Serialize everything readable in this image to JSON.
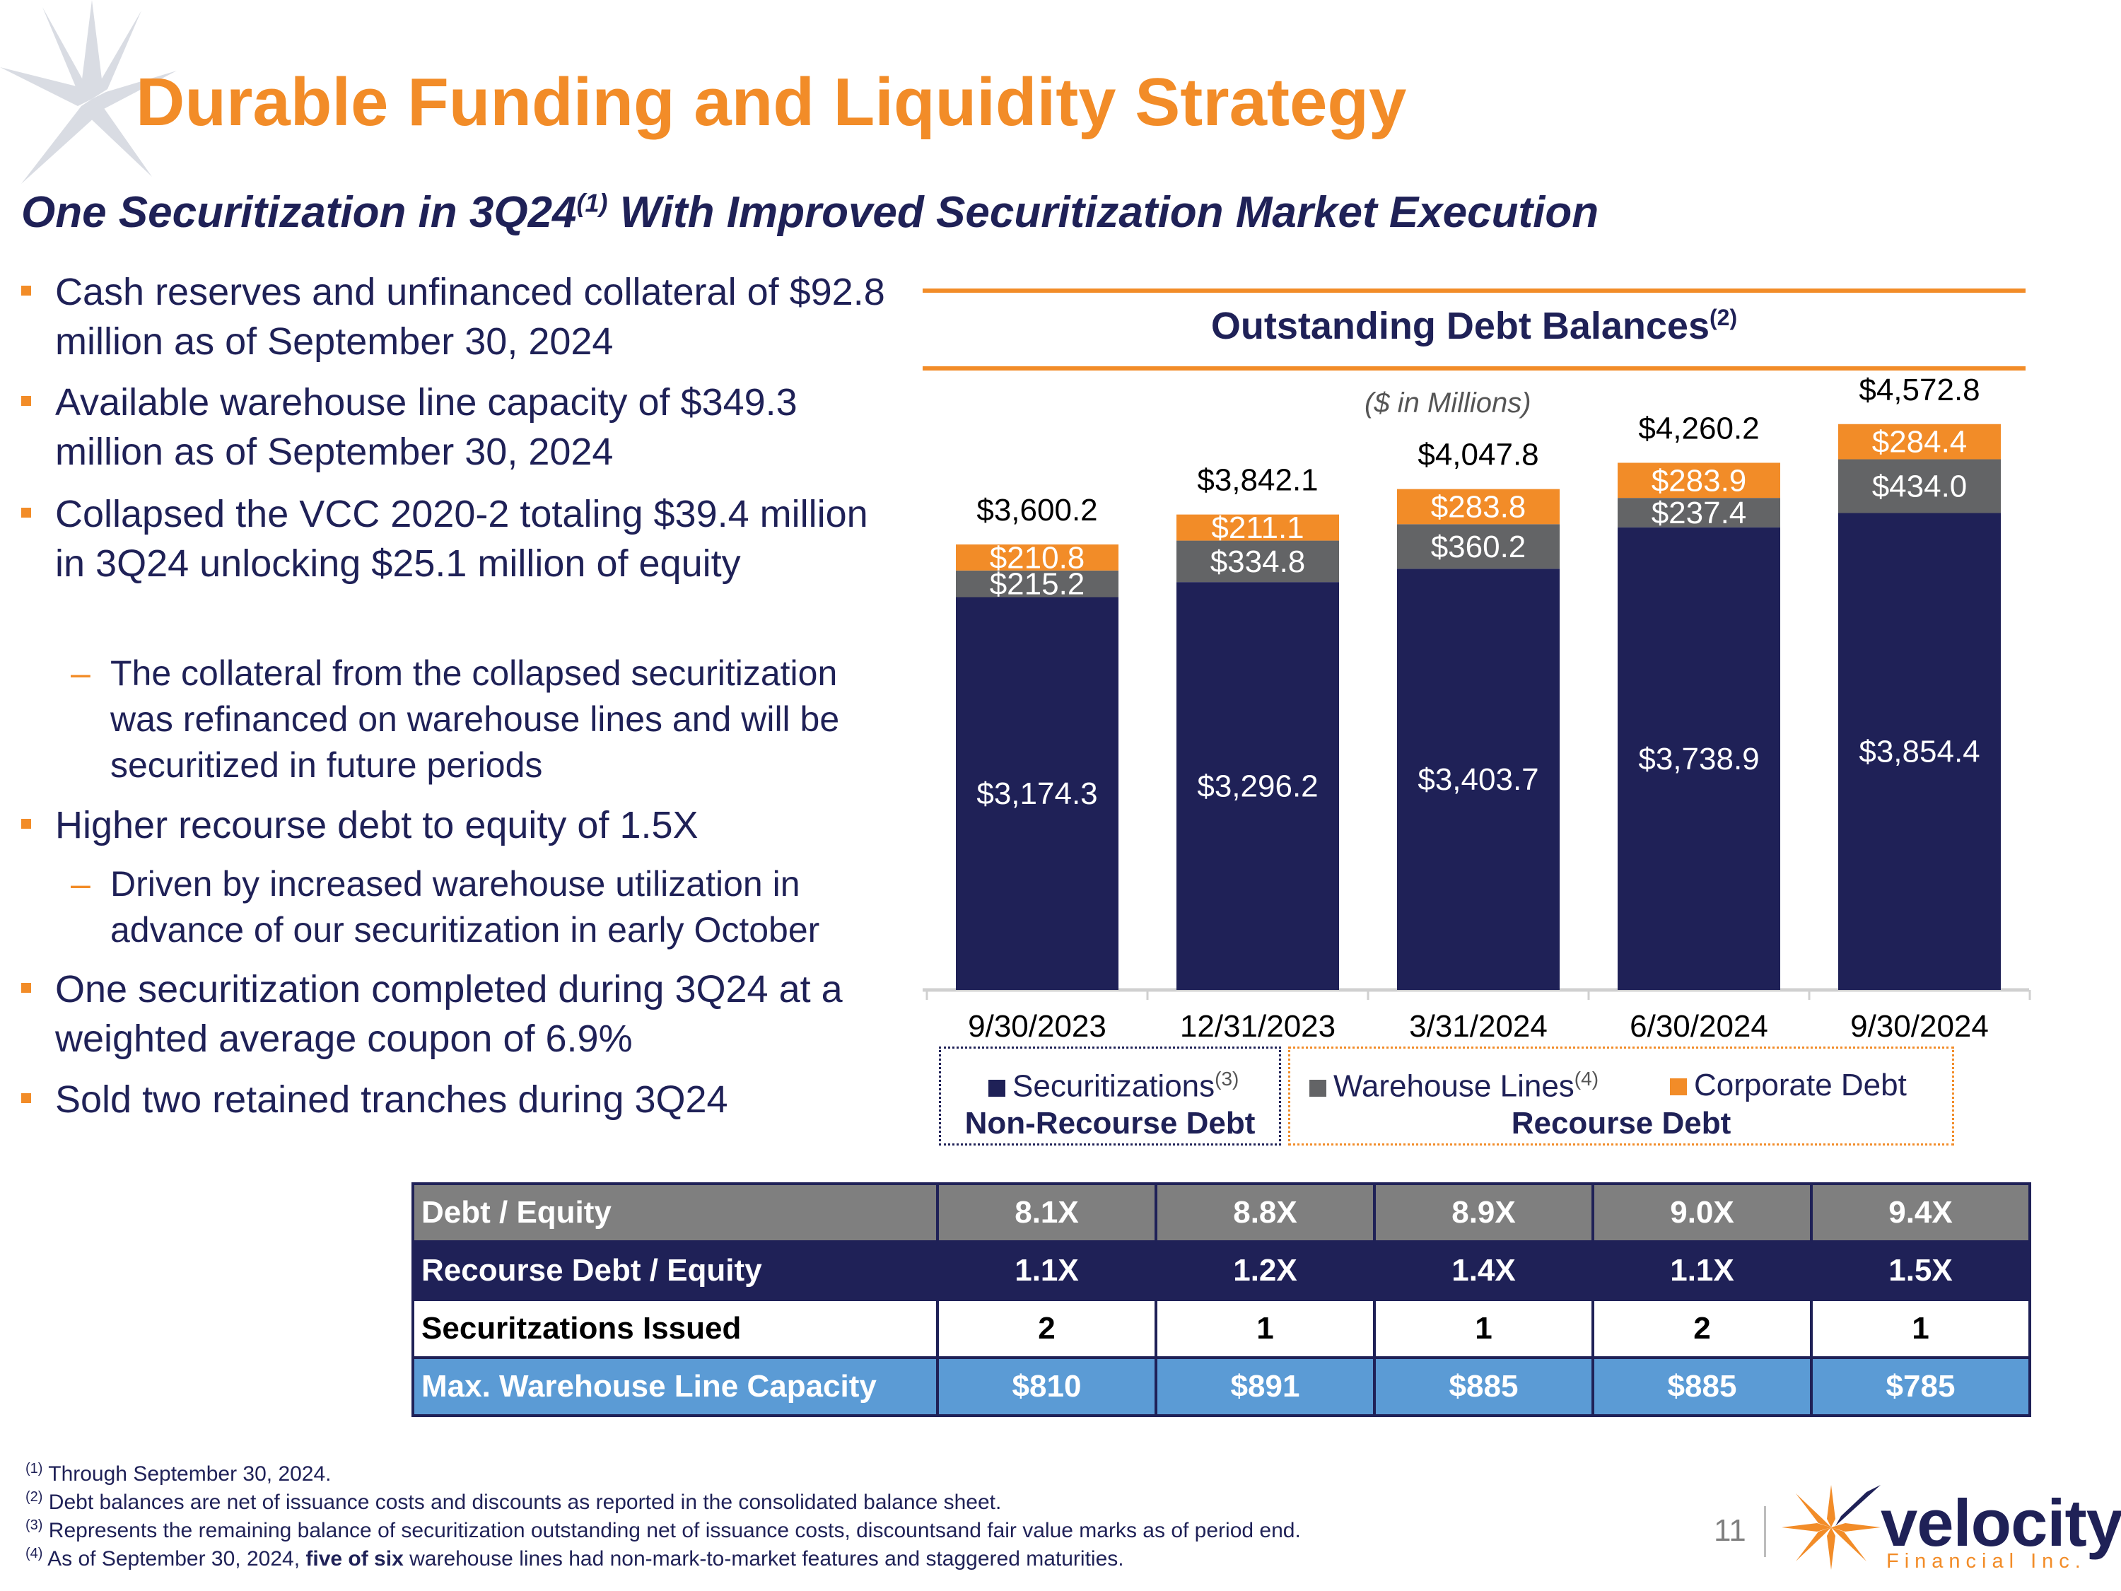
{
  "header": {
    "title": "Durable Funding and Liquidity Strategy",
    "subtitle_pre": "One Securitization in 3Q24",
    "subtitle_sup": "(1)",
    "subtitle_post": " With Improved Securitization Market Execution"
  },
  "bullets": [
    "Cash reserves and unfinanced collateral of $92.8 million as of September 30, 2024",
    "Available warehouse line capacity of $349.3 million as of September 30, 2024",
    "Collapsed the VCC 2020-2 totaling $39.4 million in 3Q24 unlocking $25.1 million of equity",
    "The collateral from the collapsed securitization was refinanced on warehouse lines and will be securitized in future periods",
    "Higher recourse debt to equity of 1.5X",
    "Driven by increased warehouse utilization in advance of our securitization in early October",
    "One securitization completed during 3Q24 at a weighted average coupon of 6.9%",
    "Sold two retained tranches during 3Q24"
  ],
  "colors": {
    "navy": "#1f2157",
    "gray": "#636466",
    "orange": "#f28c28",
    "blue": "#5b9bd5"
  },
  "chart_data": {
    "type": "bar",
    "stacked": true,
    "title": "Outstanding Debt Balances",
    "title_sup": "(2)",
    "units": "($ in Millions)",
    "categories": [
      "9/30/2023",
      "12/31/2023",
      "3/31/2024",
      "6/30/2024",
      "9/30/2024"
    ],
    "series": [
      {
        "name": "Securitizations",
        "sup": "(3)",
        "color": "#1f2157",
        "values": [
          3174.3,
          3296.2,
          3403.7,
          3738.9,
          3854.4
        ],
        "labels": [
          "$3,174.3",
          "$3,296.2",
          "$3,403.7",
          "$3,738.9",
          "$3,854.4"
        ]
      },
      {
        "name": "Warehouse Lines",
        "sup": "(4)",
        "color": "#636466",
        "values": [
          215.2,
          334.8,
          360.2,
          237.4,
          434.0
        ],
        "labels": [
          "$215.2",
          "$334.8",
          "$360.2",
          "$237.4",
          "$434.0"
        ]
      },
      {
        "name": "Corporate Debt",
        "sup": "",
        "color": "#f28c28",
        "values": [
          210.8,
          211.1,
          283.8,
          283.9,
          284.4
        ],
        "labels": [
          "$210.8",
          "$211.1",
          "$283.8",
          "$283.9",
          "$284.4"
        ]
      }
    ],
    "totals": [
      3600.2,
      3842.1,
      4047.8,
      4260.2,
      4572.8
    ],
    "total_labels": [
      "$3,600.2",
      "$3,842.1",
      "$4,047.8",
      "$4,260.2",
      "$4,572.8"
    ],
    "ylim": [
      0,
      4800
    ],
    "legend_groups": [
      "Non-Recourse Debt",
      "Recourse Debt"
    ],
    "legend": "bottom"
  },
  "table": {
    "rows": [
      {
        "label": "Debt / Equity",
        "values": [
          "8.1X",
          "8.8X",
          "8.9X",
          "9.0X",
          "9.4X"
        ]
      },
      {
        "label": "Recourse Debt / Equity",
        "values": [
          "1.1X",
          "1.2X",
          "1.4X",
          "1.1X",
          "1.5X"
        ]
      },
      {
        "label": "Securitzations Issued",
        "values": [
          "2",
          "1",
          "1",
          "2",
          "1"
        ]
      },
      {
        "label": "Max. Warehouse Line Capacity",
        "values": [
          "$810",
          "$891",
          "$885",
          "$885",
          "$785"
        ]
      }
    ]
  },
  "footnotes": {
    "f1_mark": "(1)",
    "f1": " Through September 30, 2024.",
    "f2_mark": "(2)",
    "f2": " Debt balances are net of issuance costs and discounts as reported in the consolidated balance sheet.",
    "f3_mark": "(3)",
    "f3": " Represents the remaining balance of securitization outstanding net of issuance costs, discountsand fair value marks as of period end.",
    "f4_mark": "(4)",
    "f4_pre": " As of September 30, 2024, ",
    "f4_bold": "five of six",
    "f4_post": " warehouse lines had non-mark-to-market features and staggered maturities."
  },
  "footer": {
    "page_number": "11",
    "logo_word": "velocity",
    "logo_sub": "Financial Inc."
  }
}
